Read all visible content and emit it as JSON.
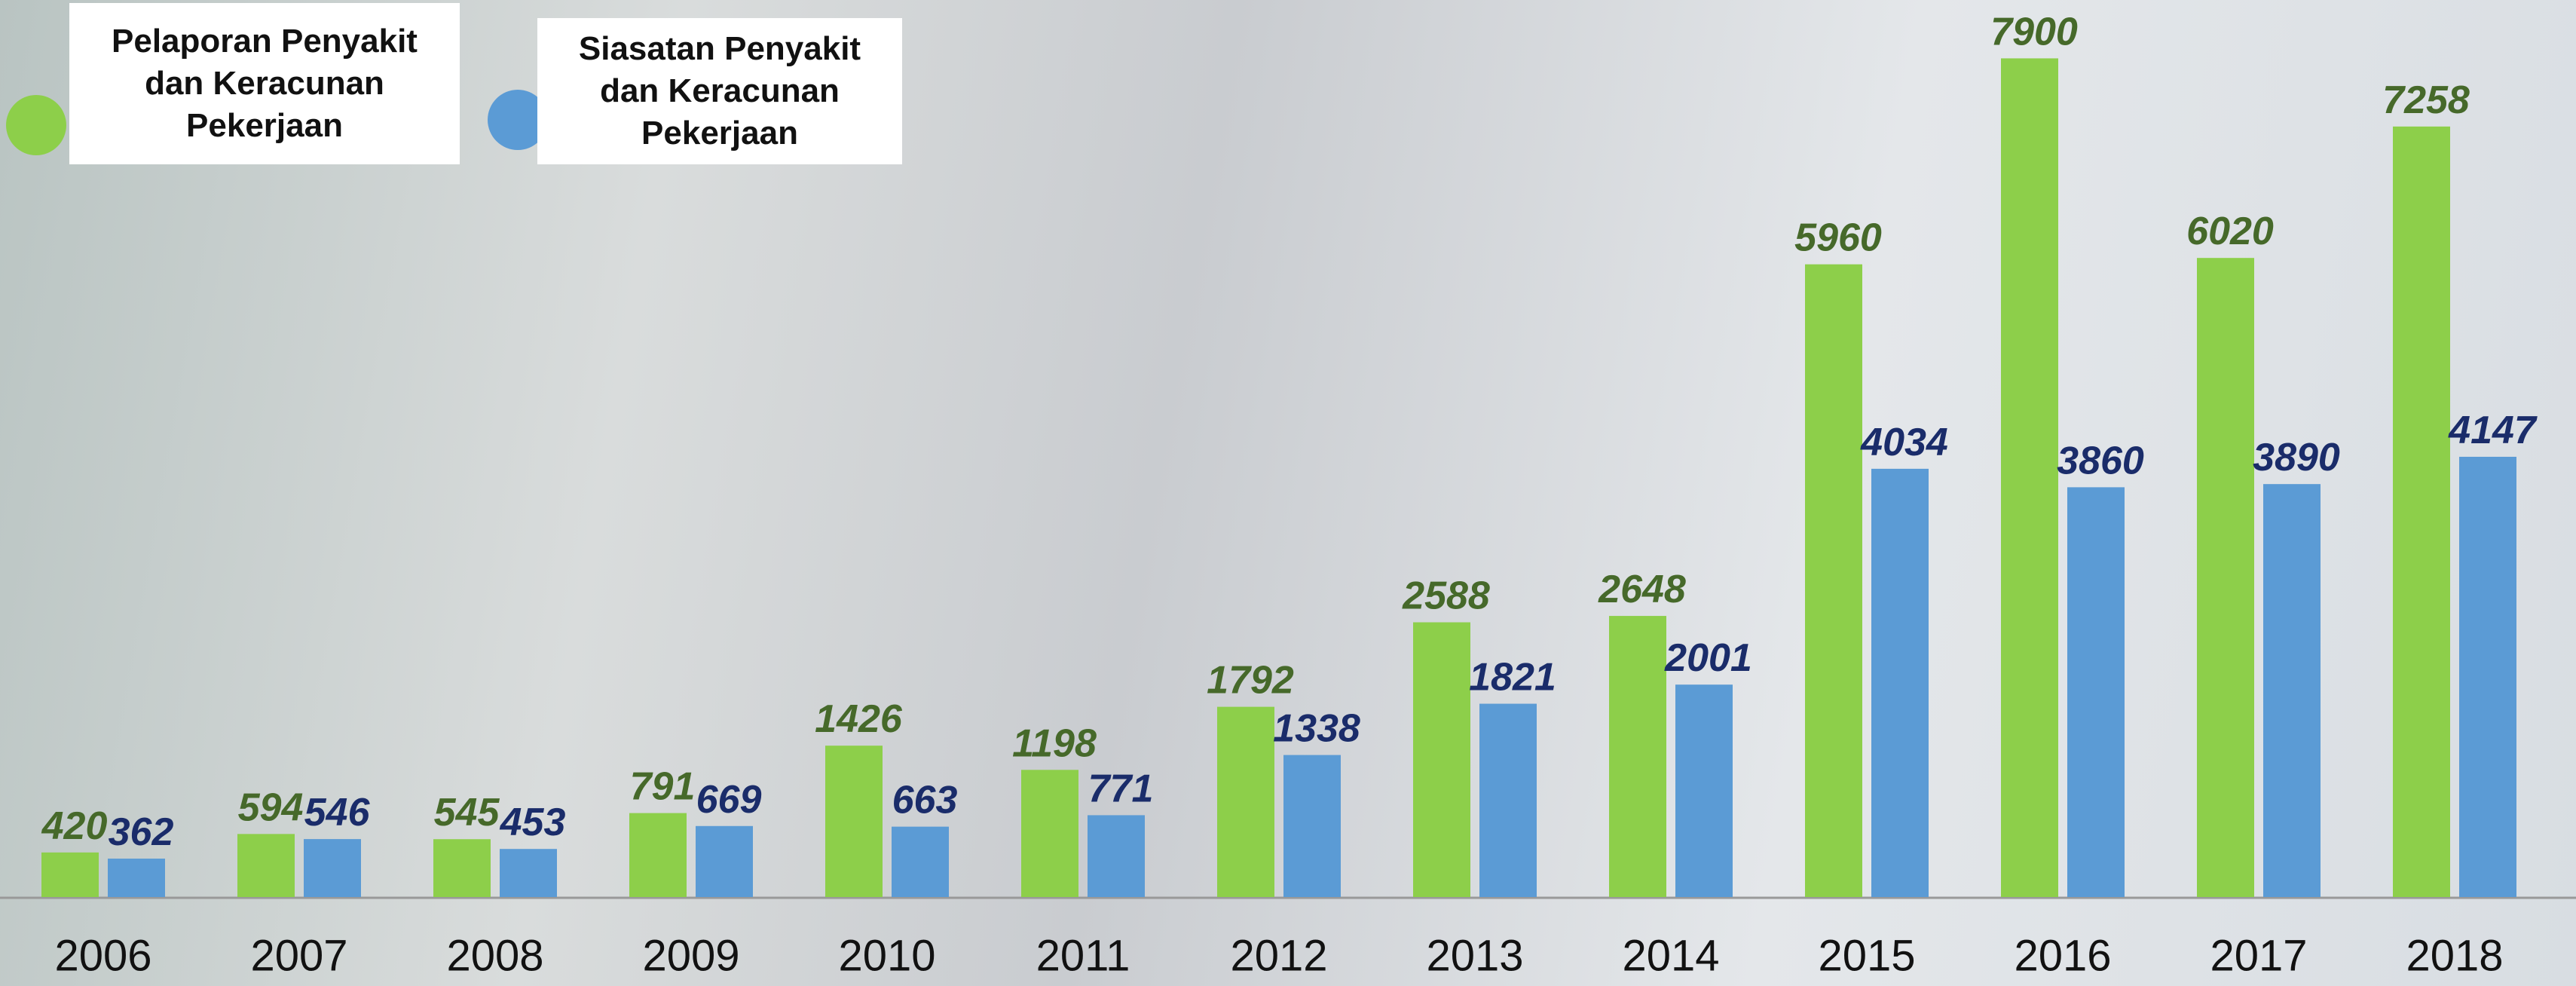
{
  "chart_data": {
    "type": "bar",
    "categories": [
      "2006",
      "2007",
      "2008",
      "2009",
      "2010",
      "2011",
      "2012",
      "2013",
      "2014",
      "2015",
      "2016",
      "2017",
      "2018"
    ],
    "series": [
      {
        "name": "Pelaporan Penyakit dan Keracunan Pekerjaan",
        "color": "#8dcf4a",
        "label_color": "#46692a",
        "values": [
          420,
          594,
          545,
          791,
          1426,
          1198,
          1792,
          2588,
          2648,
          5960,
          7900,
          6020,
          7258
        ]
      },
      {
        "name": "Siasatan Penyakit dan Keracunan Pekerjaan",
        "color": "#5b9bd5",
        "label_color": "#1a2c6a",
        "values": [
          362,
          546,
          453,
          669,
          663,
          771,
          1338,
          1821,
          2001,
          4034,
          3860,
          3890,
          4147
        ]
      }
    ],
    "ylim": [
      0,
      7832
    ],
    "legend": "top-left"
  }
}
